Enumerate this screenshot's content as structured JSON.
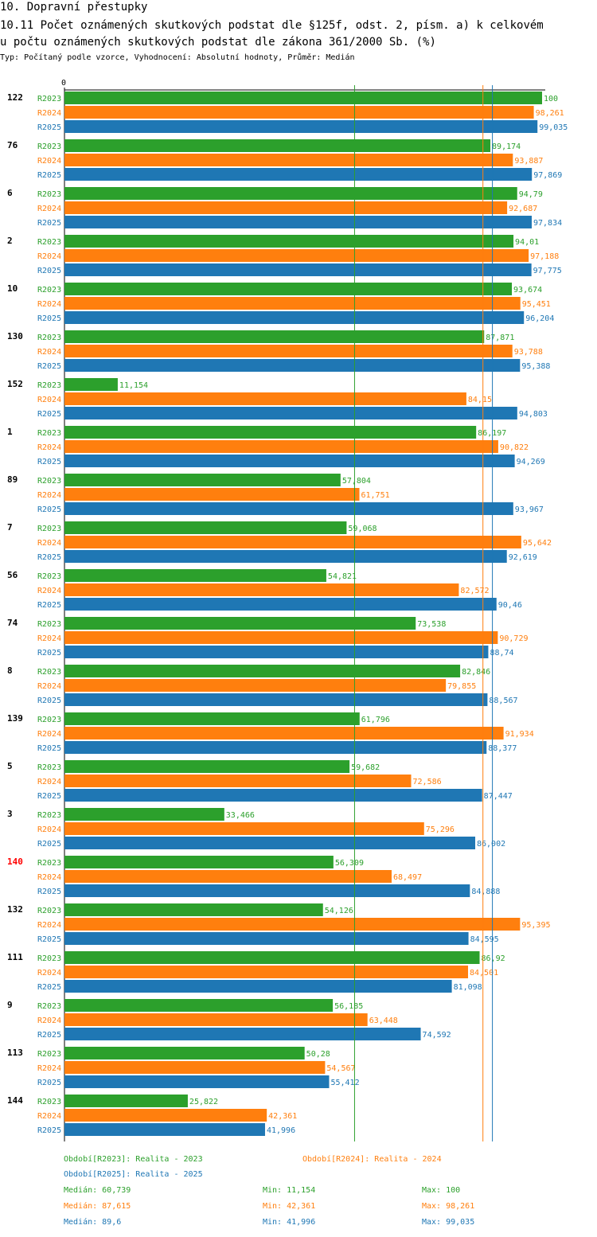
{
  "header": {
    "title": "10. Dopravní přestupky",
    "subtitle_line1": "10.11 Počet oznámených skutkových podstat dle §125f, odst. 2, písm. a) k celkovém",
    "subtitle_line2": "u počtu oznámených skutkových podstat dle zákona 361/2000 Sb. (%)",
    "meta": "Typ: Počítaný podle vzorce, Vyhodnocení: Absolutní hodnoty, Průměr: Medián"
  },
  "colors": {
    "r2023": "#2ca02c",
    "r2024": "#ff7f0e",
    "r2025": "#1f77b4",
    "highlight": "#ff0000",
    "text": "#000000"
  },
  "chart_data": {
    "type": "bar",
    "orientation": "horizontal",
    "title": "10.11 Počet oznámených skutkových podstat dle §125f, odst. 2, písm. a) k celkovému počtu oznámených skutkových podstat dle zákona 361/2000 Sb. (%)",
    "xlim": [
      0,
      100
    ],
    "axis_zero_label": "0",
    "categories": [
      "122",
      "76",
      "6",
      "2",
      "10",
      "130",
      "152",
      "1",
      "89",
      "7",
      "56",
      "74",
      "8",
      "139",
      "5",
      "3",
      "140",
      "132",
      "111",
      "9",
      "113",
      "144"
    ],
    "highlight_category": "140",
    "series": [
      {
        "name": "R2023",
        "color": "#2ca02c",
        "values": [
          100,
          89.174,
          94.79,
          94.01,
          93.674,
          87.871,
          11.154,
          86.197,
          57.804,
          59.068,
          54.821,
          73.538,
          82.846,
          61.796,
          59.682,
          33.466,
          56.309,
          54.126,
          86.92,
          56.185,
          50.28,
          25.822
        ],
        "labels": [
          "100",
          "89,174",
          "94,79",
          "94,01",
          "93,674",
          "87,871",
          "11,154",
          "86,197",
          "57,804",
          "59,068",
          "54,821",
          "73,538",
          "82,846",
          "61,796",
          "59,682",
          "33,466",
          "56,309",
          "54,126",
          "86,92",
          "56,185",
          "50,28",
          "25,822"
        ]
      },
      {
        "name": "R2024",
        "color": "#ff7f0e",
        "values": [
          98.261,
          93.887,
          92.687,
          97.188,
          95.451,
          93.788,
          84.15,
          90.822,
          61.751,
          95.642,
          82.572,
          90.729,
          79.855,
          91.934,
          72.586,
          75.296,
          68.497,
          95.395,
          84.501,
          63.448,
          54.567,
          42.361
        ],
        "labels": [
          "98,261",
          "93,887",
          "92,687",
          "97,188",
          "95,451",
          "93,788",
          "84,15",
          "90,822",
          "61,751",
          "95,642",
          "82,572",
          "90,729",
          "79,855",
          "91,934",
          "72,586",
          "75,296",
          "68,497",
          "95,395",
          "84,501",
          "63,448",
          "54,567",
          "42,361"
        ]
      },
      {
        "name": "R2025",
        "color": "#1f77b4",
        "values": [
          99.035,
          97.869,
          97.834,
          97.775,
          96.204,
          95.388,
          94.803,
          94.269,
          93.967,
          92.619,
          90.46,
          88.74,
          88.567,
          88.377,
          87.447,
          86.002,
          84.888,
          84.595,
          81.098,
          74.592,
          55.412,
          41.996
        ],
        "labels": [
          "99,035",
          "97,869",
          "97,834",
          "97,775",
          "96,204",
          "95,388",
          "94,803",
          "94,269",
          "93,967",
          "92,619",
          "90,46",
          "88,74",
          "88,567",
          "88,377",
          "87,447",
          "86,002",
          "84,888",
          "84,595",
          "81,098",
          "74,592",
          "55,412",
          "41,996"
        ]
      }
    ],
    "median_lines": [
      {
        "series": "R2023",
        "value": 60.739
      },
      {
        "series": "R2024",
        "value": 87.615
      },
      {
        "series": "R2025",
        "value": 89.6
      }
    ]
  },
  "legend": {
    "r2023": "Období[R2023]: Realita - 2023",
    "r2024": "Období[R2024]: Realita - 2024",
    "r2025": "Období[R2025]: Realita - 2025"
  },
  "stats": [
    {
      "series": "R2023",
      "median": "Medián: 60,739",
      "min": "Min: 11,154",
      "max": "Max: 100"
    },
    {
      "series": "R2024",
      "median": "Medián: 87,615",
      "min": "Min: 42,361",
      "max": "Max: 98,261"
    },
    {
      "series": "R2025",
      "median": "Medián: 89,6",
      "min": "Min: 41,996",
      "max": "Max: 99,035"
    }
  ]
}
